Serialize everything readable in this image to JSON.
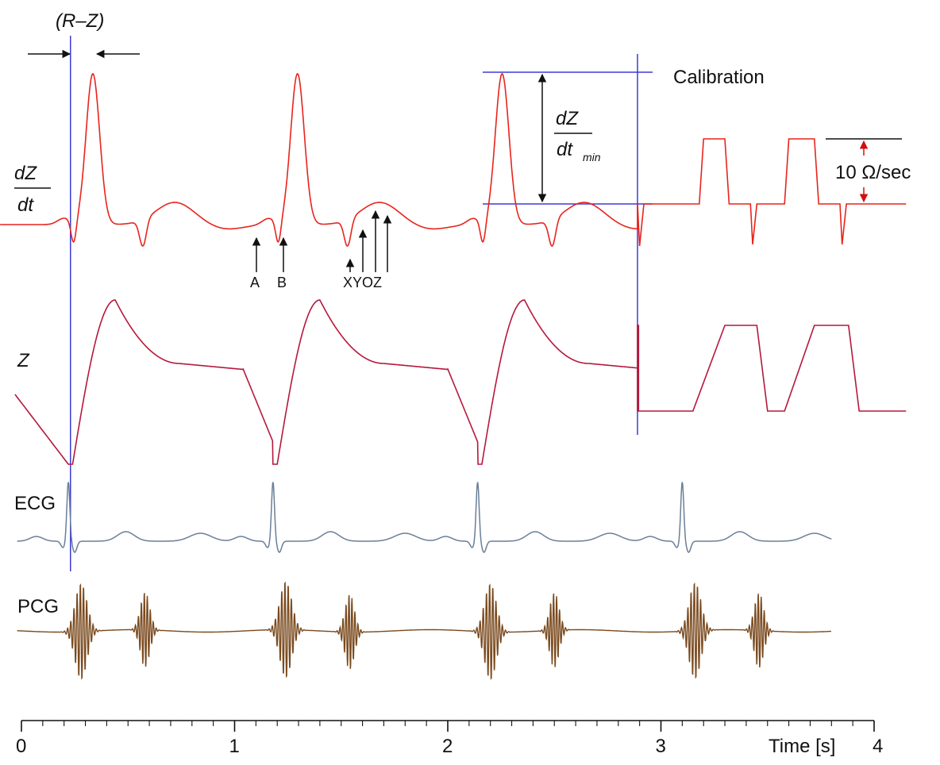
{
  "chart_data": {
    "type": "line",
    "title": "",
    "xlabel": "Time [s]",
    "xlim": [
      0,
      4
    ],
    "x_ticks": [
      "0",
      "1",
      "2",
      "3",
      "4"
    ],
    "minor_ticks_per_unit": 10,
    "grid": false,
    "colors": {
      "dzdt": "#e8241c",
      "z": "#b5183c",
      "ecg": "#6a7f98",
      "pcg": "#7a4a1e",
      "marker": "#3b3bd6",
      "annotation": "#111111",
      "calibration_arrow": "#d01010"
    },
    "beat_times": [
      0.22,
      1.18,
      2.14,
      3.1
    ],
    "calibration_start": 2.89,
    "series": [
      {
        "key": "dzdt",
        "name": "dZ/dt",
        "beats": [
          0.24,
          1.2,
          2.16
        ],
        "calibration_pulses": [
          [
            3.2,
            3.3
          ],
          [
            3.6,
            3.72
          ]
        ],
        "calibration_spikes": [
          2.9,
          3.43,
          3.85
        ]
      },
      {
        "key": "z",
        "name": "Z",
        "beats": [
          0.24,
          1.2,
          2.16
        ],
        "calibration_ramps": [
          [
            3.15,
            3.3,
            3.45,
            3.5
          ],
          [
            3.58,
            3.72,
            3.88,
            3.93
          ]
        ]
      },
      {
        "key": "ecg",
        "name": "ECG",
        "r_peaks": [
          0.22,
          1.18,
          2.14,
          3.1
        ]
      },
      {
        "key": "pcg",
        "name": "PCG",
        "bursts_s1": [
          0.28,
          1.24,
          2.2,
          3.16
        ],
        "bursts_s2": [
          0.58,
          1.54,
          2.5,
          3.46
        ]
      }
    ],
    "labels": {
      "dzdt_num": "dZ",
      "dzdt_den": "dt",
      "z": "Z",
      "ecg": "ECG",
      "pcg": "PCG",
      "rz": "(R–Z)",
      "calibration": "Calibration",
      "calibration_value": "10 Ω/sec",
      "dzdt_min_num": "dZ",
      "dzdt_min_den": "dt",
      "dzdt_min_sub": "min",
      "point_a": "A",
      "point_b": "B",
      "point_xyoz": "XYOZ"
    }
  }
}
